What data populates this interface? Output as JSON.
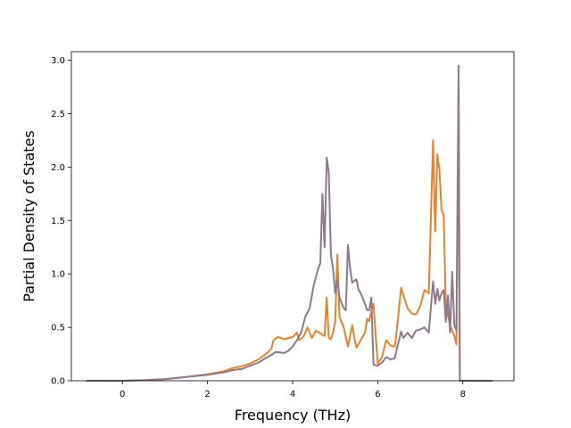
{
  "chart_data": {
    "type": "line",
    "title": "",
    "xlabel": "Frequency (THz)",
    "ylabel": "Partial Density of States",
    "xlim": [
      -1.2,
      9.2
    ],
    "ylim": [
      0.0,
      3.08
    ],
    "xticks": [
      0,
      2,
      4,
      6,
      8
    ],
    "yticks": [
      0.0,
      0.5,
      1.0,
      1.5,
      2.0,
      2.5,
      3.0
    ],
    "xtick_labels": [
      "0",
      "2",
      "4",
      "6",
      "8"
    ],
    "ytick_labels": [
      "0.0",
      "0.5",
      "1.0",
      "1.5",
      "2.0",
      "2.5",
      "3.0"
    ],
    "grid": false,
    "legend": "none",
    "series": [
      {
        "color": "#e5822a",
        "points": [
          [
            -0.85,
            0.0
          ],
          [
            0.0,
            0.0
          ],
          [
            0.5,
            0.005
          ],
          [
            1.0,
            0.015
          ],
          [
            1.5,
            0.035
          ],
          [
            2.0,
            0.06
          ],
          [
            2.4,
            0.09
          ],
          [
            2.6,
            0.12
          ],
          [
            2.8,
            0.135
          ],
          [
            3.0,
            0.16
          ],
          [
            3.2,
            0.2
          ],
          [
            3.4,
            0.26
          ],
          [
            3.5,
            0.3
          ],
          [
            3.55,
            0.38
          ],
          [
            3.65,
            0.41
          ],
          [
            3.8,
            0.39
          ],
          [
            3.9,
            0.4
          ],
          [
            4.0,
            0.41
          ],
          [
            4.1,
            0.45
          ],
          [
            4.15,
            0.38
          ],
          [
            4.25,
            0.41
          ],
          [
            4.35,
            0.5
          ],
          [
            4.45,
            0.4
          ],
          [
            4.55,
            0.47
          ],
          [
            4.7,
            0.43
          ],
          [
            4.75,
            0.42
          ],
          [
            4.8,
            0.78
          ],
          [
            4.85,
            0.4
          ],
          [
            4.9,
            0.39
          ],
          [
            4.95,
            0.45
          ],
          [
            5.0,
            0.55
          ],
          [
            5.05,
            1.18
          ],
          [
            5.1,
            0.6
          ],
          [
            5.2,
            0.5
          ],
          [
            5.3,
            0.32
          ],
          [
            5.4,
            0.52
          ],
          [
            5.45,
            0.4
          ],
          [
            5.5,
            0.31
          ],
          [
            5.6,
            0.38
          ],
          [
            5.7,
            0.45
          ],
          [
            5.75,
            0.58
          ],
          [
            5.8,
            0.56
          ],
          [
            5.85,
            0.65
          ],
          [
            5.9,
            0.72
          ],
          [
            6.0,
            0.16
          ],
          [
            6.1,
            0.22
          ],
          [
            6.2,
            0.38
          ],
          [
            6.3,
            0.33
          ],
          [
            6.4,
            0.32
          ],
          [
            6.45,
            0.48
          ],
          [
            6.55,
            0.87
          ],
          [
            6.7,
            0.68
          ],
          [
            6.8,
            0.63
          ],
          [
            6.9,
            0.62
          ],
          [
            7.0,
            0.7
          ],
          [
            7.1,
            0.85
          ],
          [
            7.2,
            0.82
          ],
          [
            7.3,
            2.25
          ],
          [
            7.35,
            1.4
          ],
          [
            7.4,
            2.12
          ],
          [
            7.45,
            1.98
          ],
          [
            7.5,
            1.6
          ],
          [
            7.55,
            1.55
          ],
          [
            7.6,
            0.7
          ],
          [
            7.7,
            0.52
          ],
          [
            7.8,
            0.42
          ],
          [
            7.85,
            0.34
          ],
          [
            7.9,
            2.7
          ],
          [
            7.93,
            0.0
          ],
          [
            8.7,
            0.0
          ]
        ]
      },
      {
        "color": "#8c7a8c",
        "points": [
          [
            -0.85,
            0.0
          ],
          [
            0.0,
            0.0
          ],
          [
            0.5,
            0.005
          ],
          [
            1.0,
            0.015
          ],
          [
            1.5,
            0.035
          ],
          [
            2.0,
            0.055
          ],
          [
            2.4,
            0.08
          ],
          [
            2.6,
            0.1
          ],
          [
            2.8,
            0.11
          ],
          [
            3.0,
            0.14
          ],
          [
            3.2,
            0.17
          ],
          [
            3.4,
            0.22
          ],
          [
            3.5,
            0.24
          ],
          [
            3.6,
            0.27
          ],
          [
            3.8,
            0.26
          ],
          [
            3.9,
            0.28
          ],
          [
            4.0,
            0.32
          ],
          [
            4.1,
            0.38
          ],
          [
            4.2,
            0.45
          ],
          [
            4.3,
            0.6
          ],
          [
            4.4,
            0.68
          ],
          [
            4.5,
            0.9
          ],
          [
            4.6,
            1.05
          ],
          [
            4.65,
            1.1
          ],
          [
            4.7,
            1.75
          ],
          [
            4.75,
            1.25
          ],
          [
            4.8,
            2.09
          ],
          [
            4.85,
            1.95
          ],
          [
            4.9,
            1.18
          ],
          [
            4.95,
            1.05
          ],
          [
            5.0,
            0.82
          ],
          [
            5.05,
            0.95
          ],
          [
            5.1,
            0.78
          ],
          [
            5.2,
            0.68
          ],
          [
            5.25,
            0.66
          ],
          [
            5.3,
            1.27
          ],
          [
            5.35,
            1.05
          ],
          [
            5.4,
            0.92
          ],
          [
            5.5,
            0.95
          ],
          [
            5.55,
            0.85
          ],
          [
            5.6,
            0.82
          ],
          [
            5.7,
            0.72
          ],
          [
            5.75,
            0.66
          ],
          [
            5.8,
            0.66
          ],
          [
            5.85,
            0.78
          ],
          [
            5.9,
            0.15
          ],
          [
            6.0,
            0.14
          ],
          [
            6.1,
            0.17
          ],
          [
            6.2,
            0.22
          ],
          [
            6.3,
            0.2
          ],
          [
            6.4,
            0.21
          ],
          [
            6.45,
            0.3
          ],
          [
            6.55,
            0.46
          ],
          [
            6.6,
            0.4
          ],
          [
            6.7,
            0.45
          ],
          [
            6.8,
            0.4
          ],
          [
            6.9,
            0.47
          ],
          [
            7.0,
            0.48
          ],
          [
            7.1,
            0.5
          ],
          [
            7.2,
            0.45
          ],
          [
            7.3,
            0.93
          ],
          [
            7.35,
            0.72
          ],
          [
            7.4,
            0.86
          ],
          [
            7.45,
            0.75
          ],
          [
            7.5,
            0.82
          ],
          [
            7.55,
            0.85
          ],
          [
            7.6,
            0.55
          ],
          [
            7.65,
            0.8
          ],
          [
            7.7,
            0.45
          ],
          [
            7.75,
            1.02
          ],
          [
            7.8,
            0.52
          ],
          [
            7.85,
            0.47
          ],
          [
            7.9,
            2.95
          ],
          [
            7.93,
            0.0
          ],
          [
            8.7,
            0.0
          ]
        ]
      }
    ]
  }
}
